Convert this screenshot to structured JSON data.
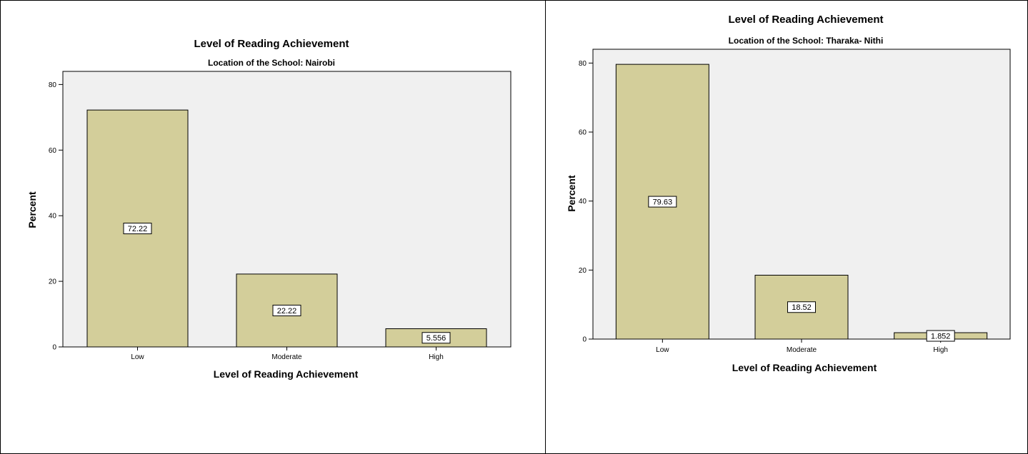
{
  "colors": {
    "bar_fill": "#d3ce9a",
    "plot_bg": "#f0f0f0",
    "bar_stroke": "#000000"
  },
  "chart_data": [
    {
      "type": "bar",
      "title": "Level of Reading Achievement",
      "subtitle": "Location of the School: Nairobi",
      "xlabel": "Level of Reading Achievement",
      "ylabel": "Percent",
      "categories": [
        "Low",
        "Moderate",
        "High"
      ],
      "values": [
        72.22,
        22.22,
        5.556
      ],
      "data_labels": [
        "72.22",
        "22.22",
        "5.556"
      ],
      "yticks": [
        0,
        20,
        40,
        60,
        80
      ],
      "ylim": [
        0,
        80
      ],
      "grid": false,
      "legend": "none"
    },
    {
      "type": "bar",
      "title": "Level of Reading Achievement",
      "subtitle": "Location of the School: Tharaka- Nithi",
      "xlabel": "Level of Reading Achievement",
      "ylabel": "Percent",
      "categories": [
        "Low",
        "Moderate",
        "High"
      ],
      "values": [
        79.63,
        18.52,
        1.852
      ],
      "data_labels": [
        "79.63",
        "18.52",
        "1.852"
      ],
      "yticks": [
        0,
        20,
        40,
        60,
        80
      ],
      "ylim": [
        0,
        80
      ],
      "grid": false,
      "legend": "none"
    }
  ]
}
